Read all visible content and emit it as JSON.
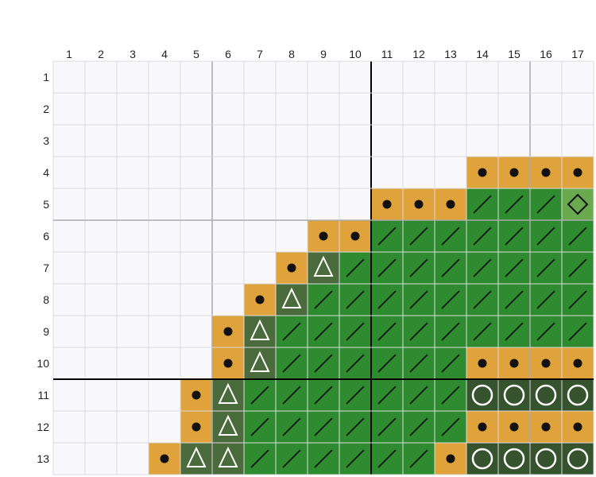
{
  "grid": {
    "col_labels": [
      "1",
      "2",
      "3",
      "4",
      "5",
      "6",
      "7",
      "8",
      "9",
      "10",
      "11",
      "12",
      "13",
      "14",
      "15",
      "16",
      "17"
    ],
    "row_labels": [
      "1",
      "2",
      "3",
      "4",
      "5",
      "6",
      "7",
      "8",
      "9",
      "10",
      "11",
      "12",
      "13"
    ],
    "colors": {
      "empty": "#f8f8fd",
      "gold": "#e0a23b",
      "green": "#2e8b30",
      "dark_green": "#4a6b3c",
      "darker_green": "#35542d",
      "light_green": "#6aaa4e",
      "line_minor": "#dcdcdc",
      "line_medium": "#aaaaaa",
      "line_major": "#000000"
    },
    "legend_codes": {
      ".": "empty",
      "o": "gold cell with black dot",
      "/": "green cell with slash",
      "t": "dark green cell with triangle",
      "c": "dark green cell with circle",
      "d": "light green cell with diamond"
    },
    "rows": [
      ".................",
      ".................",
      ".................",
      ".............oooo",
      "..........ooo///d",
      "........oo///////",
      ".......ot////////",
      "......ot/////////",
      ".....ot//////////",
      ".....ot//////oooo",
      "....ot///////cccc",
      "....ot///////oooo",
      "...ott//////occcc"
    ]
  }
}
